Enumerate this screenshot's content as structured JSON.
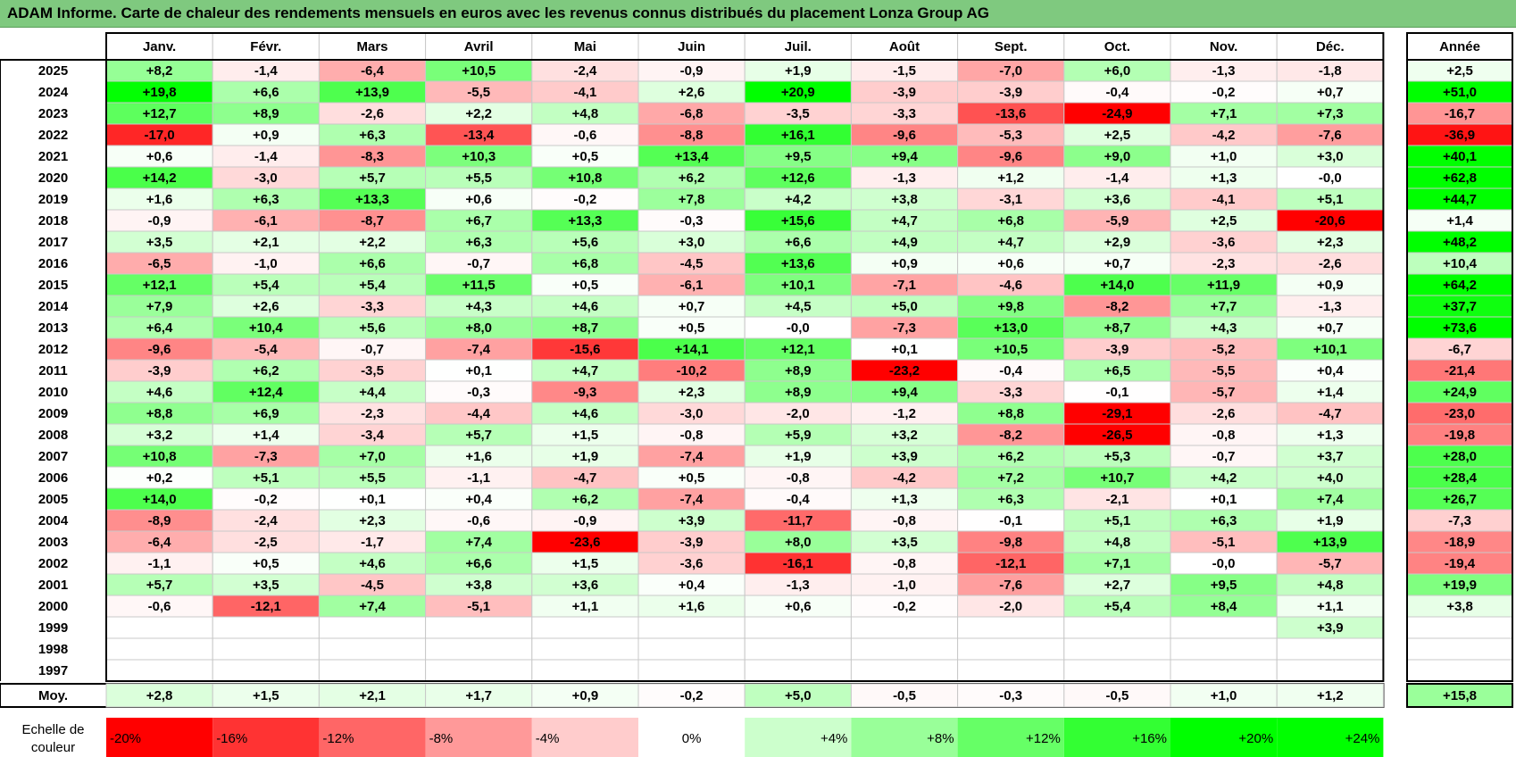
{
  "title": "ADAM Informe. Carte de chaleur des rendements mensuels en euros avec les revenus connus distribués du placement Lonza Group AG",
  "chart_data": {
    "type": "heatmap",
    "columns": [
      "Janv.",
      "Févr.",
      "Mars",
      "Avril",
      "Mai",
      "Juin",
      "Juil.",
      "Août",
      "Sept.",
      "Oct.",
      "Nov.",
      "Déc."
    ],
    "year_header": "Année",
    "avg_label": "Moy.",
    "rows": [
      {
        "year": "2025",
        "values": [
          8.2,
          -1.4,
          -6.4,
          10.5,
          -2.4,
          -0.9,
          1.9,
          -1.5,
          -7.0,
          6.0,
          -1.3,
          -1.8
        ],
        "annual": 2.5
      },
      {
        "year": "2024",
        "values": [
          19.8,
          6.6,
          13.9,
          -5.5,
          -4.1,
          2.6,
          20.9,
          -3.9,
          -3.9,
          -0.4,
          -0.2,
          0.7
        ],
        "annual": 51.0
      },
      {
        "year": "2023",
        "values": [
          12.7,
          8.9,
          -2.6,
          2.2,
          4.8,
          -6.8,
          -3.5,
          -3.3,
          -13.6,
          -24.9,
          7.1,
          7.3
        ],
        "annual": -16.7
      },
      {
        "year": "2022",
        "values": [
          -17.0,
          0.9,
          6.3,
          -13.4,
          -0.6,
          -8.8,
          16.1,
          -9.6,
          -5.3,
          2.5,
          -4.2,
          -7.6
        ],
        "annual": -36.9
      },
      {
        "year": "2021",
        "values": [
          0.6,
          -1.4,
          -8.3,
          10.3,
          0.5,
          13.4,
          9.5,
          9.4,
          -9.6,
          9.0,
          1.0,
          3.0
        ],
        "annual": 40.1
      },
      {
        "year": "2020",
        "values": [
          14.2,
          -3.0,
          5.7,
          5.5,
          10.8,
          6.2,
          12.6,
          -1.3,
          1.2,
          -1.4,
          1.3,
          "-0,0"
        ],
        "annual": 62.8
      },
      {
        "year": "2019",
        "values": [
          1.6,
          6.3,
          13.3,
          0.6,
          -0.2,
          7.8,
          4.2,
          3.8,
          -3.1,
          3.6,
          -4.1,
          5.1
        ],
        "annual": 44.7
      },
      {
        "year": "2018",
        "values": [
          -0.9,
          -6.1,
          -8.7,
          6.7,
          13.3,
          -0.3,
          15.6,
          4.7,
          6.8,
          -5.9,
          2.5,
          -20.6
        ],
        "annual": 1.4
      },
      {
        "year": "2017",
        "values": [
          3.5,
          2.1,
          2.2,
          6.3,
          5.6,
          3.0,
          6.6,
          4.9,
          4.7,
          2.9,
          -3.6,
          2.3
        ],
        "annual": 48.2
      },
      {
        "year": "2016",
        "values": [
          -6.5,
          -1.0,
          6.6,
          -0.7,
          6.8,
          -4.5,
          13.6,
          0.9,
          0.6,
          0.7,
          -2.3,
          -2.6
        ],
        "annual": 10.4
      },
      {
        "year": "2015",
        "values": [
          12.1,
          5.4,
          5.4,
          11.5,
          0.5,
          -6.1,
          10.1,
          -7.1,
          -4.6,
          14.0,
          11.9,
          0.9
        ],
        "annual": 64.2
      },
      {
        "year": "2014",
        "values": [
          7.9,
          2.6,
          -3.3,
          4.3,
          4.6,
          0.7,
          4.5,
          5.0,
          9.8,
          -8.2,
          7.7,
          -1.3
        ],
        "annual": 37.7
      },
      {
        "year": "2013",
        "values": [
          6.4,
          10.4,
          5.6,
          8.0,
          8.7,
          0.5,
          "-0,0",
          -7.3,
          13.0,
          8.7,
          4.3,
          0.7
        ],
        "annual": 73.6
      },
      {
        "year": "2012",
        "values": [
          -9.6,
          -5.4,
          -0.7,
          -7.4,
          -15.6,
          14.1,
          12.1,
          0.1,
          10.5,
          -3.9,
          -5.2,
          10.1
        ],
        "annual": -6.7
      },
      {
        "year": "2011",
        "values": [
          -3.9,
          6.2,
          -3.5,
          0.1,
          4.7,
          -10.2,
          8.9,
          -23.2,
          -0.4,
          6.5,
          -5.5,
          0.4
        ],
        "annual": -21.4
      },
      {
        "year": "2010",
        "values": [
          4.6,
          12.4,
          4.4,
          -0.3,
          -9.3,
          2.3,
          8.9,
          9.4,
          -3.3,
          -0.1,
          -5.7,
          1.4
        ],
        "annual": 24.9
      },
      {
        "year": "2009",
        "values": [
          8.8,
          6.9,
          -2.3,
          -4.4,
          4.6,
          -3.0,
          -2.0,
          -1.2,
          8.8,
          -29.1,
          -2.6,
          -4.7
        ],
        "annual": -23.0
      },
      {
        "year": "2008",
        "values": [
          3.2,
          1.4,
          -3.4,
          5.7,
          1.5,
          -0.8,
          5.9,
          3.2,
          -8.2,
          -26.5,
          -0.8,
          1.3
        ],
        "annual": -19.8
      },
      {
        "year": "2007",
        "values": [
          10.8,
          -7.3,
          7.0,
          1.6,
          1.9,
          -7.4,
          1.9,
          3.9,
          6.2,
          5.3,
          -0.7,
          3.7
        ],
        "annual": 28.0
      },
      {
        "year": "2006",
        "values": [
          0.2,
          5.1,
          5.5,
          -1.1,
          -4.7,
          0.5,
          -0.8,
          -4.2,
          7.2,
          10.7,
          4.2,
          4.0
        ],
        "annual": 28.4
      },
      {
        "year": "2005",
        "values": [
          14.0,
          -0.2,
          0.1,
          0.4,
          6.2,
          -7.4,
          -0.4,
          1.3,
          6.3,
          -2.1,
          0.1,
          7.4
        ],
        "annual": 26.7
      },
      {
        "year": "2004",
        "values": [
          -8.9,
          -2.4,
          2.3,
          -0.6,
          -0.9,
          3.9,
          -11.7,
          -0.8,
          -0.1,
          5.1,
          6.3,
          1.9
        ],
        "annual": -7.3
      },
      {
        "year": "2003",
        "values": [
          -6.4,
          -2.5,
          -1.7,
          7.4,
          -23.6,
          -3.9,
          8.0,
          3.5,
          -9.8,
          4.8,
          -5.1,
          13.9
        ],
        "annual": -18.9
      },
      {
        "year": "2002",
        "values": [
          -1.1,
          0.5,
          4.6,
          6.6,
          1.5,
          -3.6,
          -16.1,
          -0.8,
          -12.1,
          7.1,
          "-0,0",
          -5.7
        ],
        "annual": -19.4
      },
      {
        "year": "2001",
        "values": [
          5.7,
          3.5,
          -4.5,
          3.8,
          3.6,
          0.4,
          -1.3,
          -1.0,
          -7.6,
          2.7,
          9.5,
          4.8
        ],
        "annual": 19.9
      },
      {
        "year": "2000",
        "values": [
          -0.6,
          -12.1,
          7.4,
          -5.1,
          1.1,
          1.6,
          0.6,
          -0.2,
          -2.0,
          5.4,
          8.4,
          1.1
        ],
        "annual": 3.8
      },
      {
        "year": "1999",
        "values": [
          null,
          null,
          null,
          null,
          null,
          null,
          null,
          null,
          null,
          null,
          null,
          3.9
        ],
        "annual": null
      },
      {
        "year": "1998",
        "values": [
          null,
          null,
          null,
          null,
          null,
          null,
          null,
          null,
          null,
          null,
          null,
          null
        ],
        "annual": null
      },
      {
        "year": "1997",
        "values": [
          null,
          null,
          null,
          null,
          null,
          null,
          null,
          null,
          null,
          null,
          null,
          null
        ],
        "annual": null
      }
    ],
    "averages": [
      2.8,
      1.5,
      2.1,
      1.7,
      0.9,
      -0.2,
      5.0,
      -0.5,
      -0.3,
      -0.5,
      1.0,
      1.2
    ],
    "annual_average": 15.8,
    "scale_label": "Echelle de couleur",
    "scale": [
      {
        "label": "-20%",
        "value": -20
      },
      {
        "label": "-16%",
        "value": -16
      },
      {
        "label": "-12%",
        "value": -12
      },
      {
        "label": "-8%",
        "value": -8
      },
      {
        "label": "-4%",
        "value": -4
      },
      {
        "label": "0%",
        "value": 0
      },
      {
        "label": "+4%",
        "value": 4
      },
      {
        "label": "+8%",
        "value": 8
      },
      {
        "label": "+12%",
        "value": 12
      },
      {
        "label": "+16%",
        "value": 16
      },
      {
        "label": "+20%",
        "value": 20
      },
      {
        "label": "+24%",
        "value": 24
      }
    ],
    "colors": {
      "negative": "#ff0000",
      "neutral": "#ffffff",
      "positive": "#00ff00",
      "title_bg": "#7fc97f"
    }
  }
}
